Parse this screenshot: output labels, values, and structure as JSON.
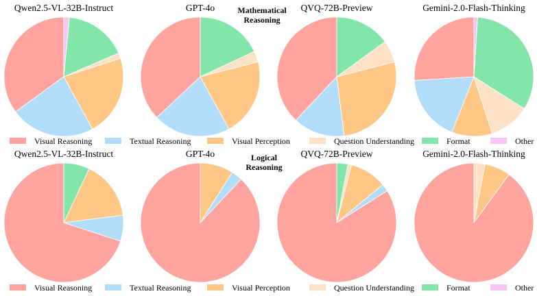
{
  "legend": {
    "items": [
      {
        "name": "Visual Reasoning",
        "color": "#FFA39E"
      },
      {
        "name": "Textual Reasoning",
        "color": "#B1DDFB"
      },
      {
        "name": "Visual Perception",
        "color": "#FEC786"
      },
      {
        "name": "Question Understanding",
        "color": "#FDE1C6"
      },
      {
        "name": "Format",
        "color": "#84E5AB"
      },
      {
        "name": "Other",
        "color": "#F6C7F5"
      }
    ]
  },
  "chart_data": [
    {
      "type": "pie",
      "section": "Mathematical Reasoning",
      "title": "Qwen2.5-VL-32B-Instruct",
      "labels": [
        "Visual Reasoning",
        "Textual Reasoning",
        "Visual Perception",
        "Question Understanding",
        "Format",
        "Other"
      ],
      "values": [
        35,
        23,
        22,
        1.5,
        17,
        1.5
      ]
    },
    {
      "type": "pie",
      "section": "Mathematical Reasoning",
      "title": "GPT-4o",
      "labels": [
        "Visual Reasoning",
        "Textual Reasoning",
        "Visual Perception",
        "Question Understanding",
        "Format",
        "Other"
      ],
      "values": [
        37,
        21,
        21,
        3,
        18,
        0
      ]
    },
    {
      "type": "pie",
      "section": "Mathematical Reasoning",
      "title": "QVQ-72B-Preview",
      "labels": [
        "Visual Reasoning",
        "Textual Reasoning",
        "Visual Perception",
        "Question Understanding",
        "Format",
        "Other"
      ],
      "values": [
        38,
        14,
        27,
        6,
        15,
        0
      ]
    },
    {
      "type": "pie",
      "section": "Mathematical Reasoning",
      "title": "Gemini-2.0-Flash-Thinking",
      "labels": [
        "Visual Reasoning",
        "Textual Reasoning",
        "Visual Perception",
        "Question Understanding",
        "Format",
        "Other"
      ],
      "values": [
        26,
        18,
        11,
        11,
        33,
        1
      ]
    },
    {
      "type": "pie",
      "section": "Logical Reasoning",
      "title": "Qwen2.5-VL-32B-Instruct",
      "labels": [
        "Visual Reasoning",
        "Textual Reasoning",
        "Visual Perception",
        "Question Understanding",
        "Format",
        "Other"
      ],
      "values": [
        70,
        7,
        16,
        0,
        7,
        0
      ]
    },
    {
      "type": "pie",
      "section": "Logical Reasoning",
      "title": "GPT-4o",
      "labels": [
        "Visual Reasoning",
        "Textual Reasoning",
        "Visual Perception",
        "Question Understanding",
        "Format",
        "Other"
      ],
      "values": [
        88,
        3,
        9,
        0,
        0,
        0
      ]
    },
    {
      "type": "pie",
      "section": "Logical Reasoning",
      "title": "QVQ-72B-Preview",
      "labels": [
        "Visual Reasoning",
        "Textual Reasoning",
        "Visual Perception",
        "Question Understanding",
        "Format",
        "Other"
      ],
      "values": [
        84,
        2,
        10,
        1,
        3,
        0
      ]
    },
    {
      "type": "pie",
      "section": "Logical Reasoning",
      "title": "Gemini-2.0-Flash-Thinking",
      "labels": [
        "Visual Reasoning",
        "Textual Reasoning",
        "Visual Perception",
        "Question Understanding",
        "Format",
        "Other"
      ],
      "values": [
        90,
        0,
        7,
        3,
        0,
        0
      ]
    }
  ]
}
